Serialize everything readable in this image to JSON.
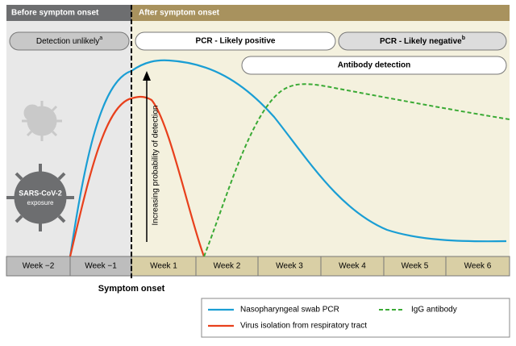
{
  "header": {
    "before": "Before symptom onset",
    "after": "After symptom onset"
  },
  "phases": {
    "unlikely": "Detection unlikely",
    "unlikely_note": "a",
    "positive": "PCR - Likely positive",
    "negative": "PCR - Likely negative",
    "negative_note": "b",
    "antibody": "Antibody detection"
  },
  "weeks": [
    "Week −2",
    "Week −1",
    "Week 1",
    "Week 2",
    "Week 3",
    "Week 4",
    "Week 5",
    "Week 6"
  ],
  "symptom_onset": "Symptom onset",
  "arrow_label": "Increasing probability of detection",
  "virus": {
    "line1": "SARS-CoV-2",
    "line2": "exposure"
  },
  "legend": {
    "pcr": "Nasopharyngeal swab PCR",
    "isolation": "Virus isolation from respiratory tract",
    "igg": "IgG antibody"
  }
}
